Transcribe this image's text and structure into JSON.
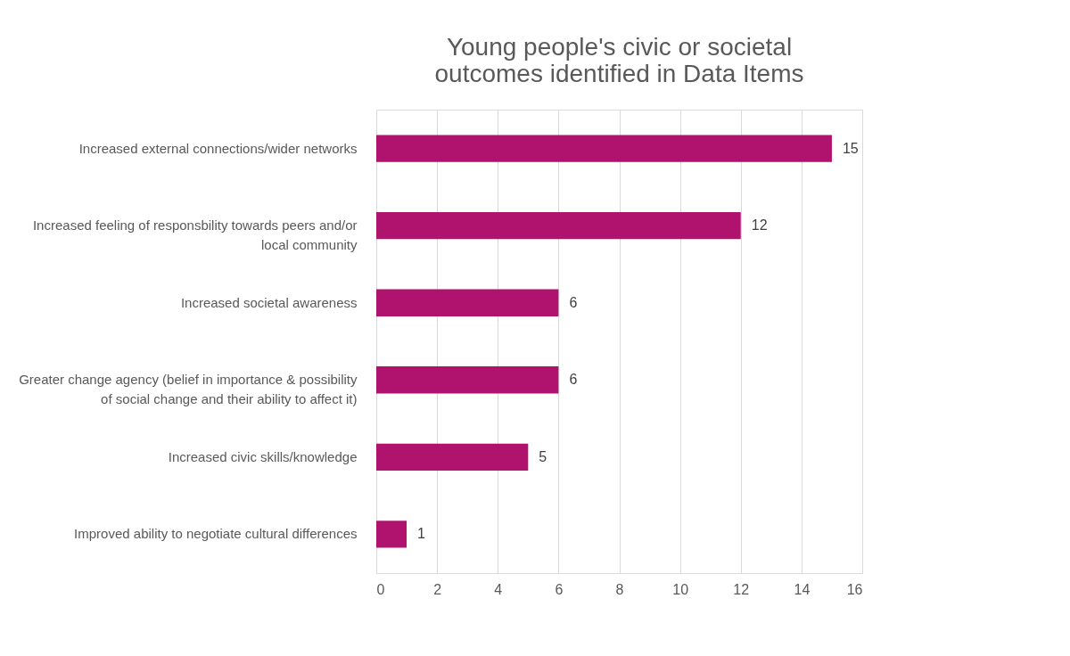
{
  "chart_data": {
    "type": "bar",
    "orientation": "horizontal",
    "title": "Young people's civic or societal outcomes identified in Data Items",
    "categories": [
      "Increased external connections/wider networks",
      "Increased feeling of responsbility towards peers and/or local community",
      "Increased societal awareness",
      "Greater change agency (belief in importance & possibility of social change and their ability to affect it)",
      "Increased civic skills/knowledge",
      "Improved ability to negotiate cultural differences"
    ],
    "values": [
      15,
      12,
      6,
      6,
      5,
      1
    ],
    "color": "#b0136e",
    "xlim": [
      0,
      16
    ],
    "xticks": [
      0,
      2,
      4,
      6,
      8,
      10,
      12,
      14,
      16
    ],
    "grid": "x",
    "data_labels": true
  }
}
